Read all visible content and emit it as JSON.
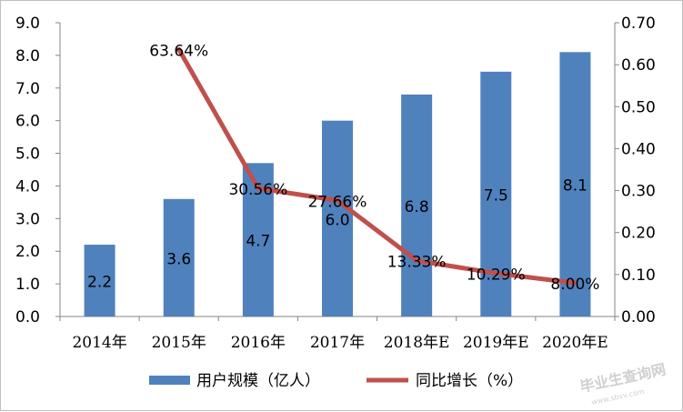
{
  "chart_data": {
    "type": "bar+line",
    "categories": [
      "2014年",
      "2015年",
      "2016年",
      "2017年",
      "2018年E",
      "2019年E",
      "2020年E"
    ],
    "series": [
      {
        "name": "用户规模（亿人）",
        "type": "bar",
        "axis": "left",
        "values": [
          2.2,
          3.6,
          4.7,
          6.0,
          6.8,
          7.5,
          8.1
        ],
        "labels": [
          "2.2",
          "3.6",
          "4.7",
          "6.0",
          "6.8",
          "7.5",
          "8.1"
        ],
        "color": "#4f81bd"
      },
      {
        "name": "同比增长（%）",
        "type": "line",
        "axis": "right",
        "values": [
          null,
          0.6364,
          0.3056,
          0.2766,
          0.1333,
          0.1029,
          0.08
        ],
        "labels": [
          null,
          "63.64%",
          "30.56%",
          "27.66%",
          "13.33%",
          "10.29%",
          "8.00%"
        ],
        "color": "#c0504d"
      }
    ],
    "y_left": {
      "min": 0,
      "max": 9,
      "step": 1,
      "ticks": [
        "0.0",
        "1.0",
        "2.0",
        "3.0",
        "4.0",
        "5.0",
        "6.0",
        "7.0",
        "8.0",
        "9.0"
      ]
    },
    "y_right": {
      "min": 0,
      "max": 0.7,
      "step": 0.1,
      "ticks": [
        "0.00",
        "0.10",
        "0.20",
        "0.30",
        "0.40",
        "0.50",
        "0.60",
        "0.70"
      ]
    },
    "grid": false,
    "legend_position": "bottom"
  },
  "watermark": {
    "text": "毕业生查询网",
    "url": "www.sbvv.com"
  }
}
